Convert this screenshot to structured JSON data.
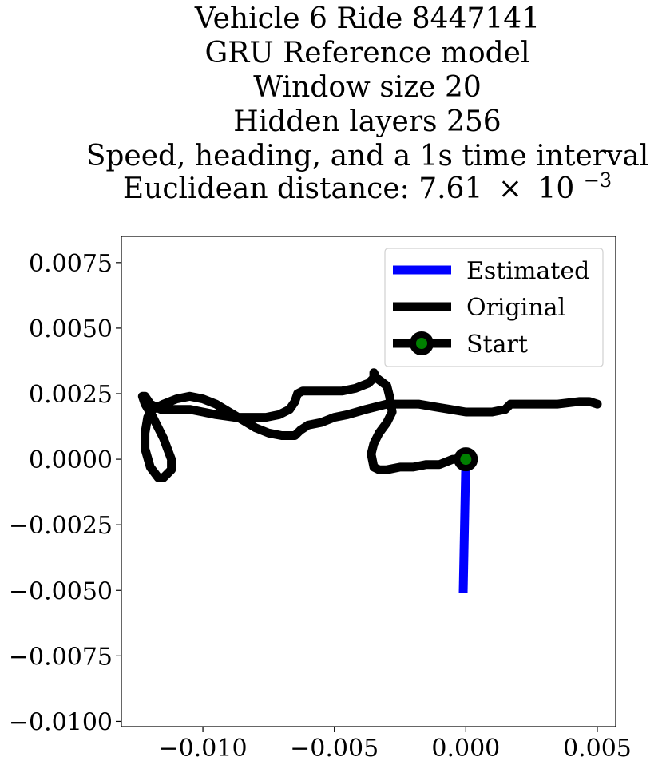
{
  "chart_data": {
    "type": "line",
    "title_lines": [
      "Vehicle 6 Ride 8447141",
      "GRU Reference model",
      "Window size 20",
      "Hidden layers 256",
      "Speed, heading, and a 1s time interval"
    ],
    "title_metric_prefix": "Euclidean distance: 7.61",
    "title_metric_times": "×",
    "title_metric_base": "10",
    "title_metric_exp": "−3",
    "xlim": [
      -0.0131,
      0.0057
    ],
    "ylim": [
      -0.0102,
      0.0085
    ],
    "xticks": [
      -0.01,
      -0.005,
      0.0,
      0.005
    ],
    "xtick_labels": [
      "−0.010",
      "−0.005",
      "0.000",
      "0.005"
    ],
    "yticks": [
      0.0075,
      0.005,
      0.0025,
      0.0,
      -0.0025,
      -0.005,
      -0.0075,
      -0.01
    ],
    "ytick_labels": [
      "0.0075",
      "0.0050",
      "0.0025",
      "0.0000",
      "−0.0025",
      "−0.0050",
      "−0.0075",
      "−0.0100"
    ],
    "grid": false,
    "legend_position": "upper right",
    "series": [
      {
        "name": "Estimated",
        "color": "#0000ff",
        "points": [
          [
            0.0,
            0.0
          ],
          [
            -0.0001,
            -0.0051
          ]
        ]
      },
      {
        "name": "Original",
        "color": "#000000",
        "points": [
          [
            0.005,
            0.0021
          ],
          [
            0.0047,
            0.0022
          ],
          [
            0.0043,
            0.0022
          ],
          [
            0.0035,
            0.0021
          ],
          [
            0.0025,
            0.0021
          ],
          [
            0.0017,
            0.0021
          ],
          [
            0.0015,
            0.0019
          ],
          [
            0.001,
            0.0018
          ],
          [
            0.0005,
            0.0018
          ],
          [
            0.0,
            0.0018
          ],
          [
            -0.0006,
            0.0019
          ],
          [
            -0.0012,
            0.002
          ],
          [
            -0.0018,
            0.0021
          ],
          [
            -0.0025,
            0.0021
          ],
          [
            -0.003,
            0.0021
          ],
          [
            -0.0038,
            0.0019
          ],
          [
            -0.0045,
            0.0017
          ],
          [
            -0.005,
            0.0016
          ],
          [
            -0.0055,
            0.0014
          ],
          [
            -0.006,
            0.0013
          ],
          [
            -0.0063,
            0.0011
          ],
          [
            -0.0065,
            0.0009
          ],
          [
            -0.007,
            0.0009
          ],
          [
            -0.0075,
            0.001
          ],
          [
            -0.008,
            0.0012
          ],
          [
            -0.0085,
            0.0015
          ],
          [
            -0.009,
            0.0018
          ],
          [
            -0.0095,
            0.0021
          ],
          [
            -0.01,
            0.0023
          ],
          [
            -0.0105,
            0.0024
          ],
          [
            -0.011,
            0.0023
          ],
          [
            -0.0115,
            0.0021
          ],
          [
            -0.0119,
            0.0019
          ],
          [
            -0.0121,
            0.0016
          ],
          [
            -0.0122,
            0.001
          ],
          [
            -0.0122,
            0.0004
          ],
          [
            -0.012,
            -0.0003
          ],
          [
            -0.0117,
            -0.0007
          ],
          [
            -0.0115,
            -0.0007
          ],
          [
            -0.0112,
            -0.0004
          ],
          [
            -0.0112,
            0.0
          ],
          [
            -0.0115,
            0.0008
          ],
          [
            -0.0119,
            0.0016
          ],
          [
            -0.0122,
            0.0021
          ],
          [
            -0.0123,
            0.0024
          ],
          [
            -0.0122,
            0.0024
          ],
          [
            -0.012,
            0.0021
          ],
          [
            -0.0116,
            0.0019
          ],
          [
            -0.011,
            0.0019
          ],
          [
            -0.0105,
            0.0019
          ],
          [
            -0.01,
            0.0018
          ],
          [
            -0.0095,
            0.0017
          ],
          [
            -0.0088,
            0.0016
          ],
          [
            -0.0082,
            0.0016
          ],
          [
            -0.0076,
            0.0016
          ],
          [
            -0.0071,
            0.0017
          ],
          [
            -0.0067,
            0.0019
          ],
          [
            -0.0065,
            0.0022
          ],
          [
            -0.0064,
            0.0025
          ],
          [
            -0.0062,
            0.0026
          ],
          [
            -0.0057,
            0.0026
          ],
          [
            -0.0052,
            0.0026
          ],
          [
            -0.0047,
            0.0026
          ],
          [
            -0.0042,
            0.0027
          ],
          [
            -0.0037,
            0.0029
          ],
          [
            -0.0035,
            0.0031
          ],
          [
            -0.0035,
            0.0033
          ],
          [
            -0.0034,
            0.0031
          ],
          [
            -0.003,
            0.0028
          ],
          [
            -0.0029,
            0.0024
          ],
          [
            -0.0028,
            0.0018
          ],
          [
            -0.003,
            0.0014
          ],
          [
            -0.0033,
            0.001
          ],
          [
            -0.0035,
            0.0006
          ],
          [
            -0.0036,
            0.0002
          ],
          [
            -0.0035,
            -0.0003
          ],
          [
            -0.0033,
            -0.0004
          ],
          [
            -0.003,
            -0.0004
          ],
          [
            -0.0025,
            -0.0003
          ],
          [
            -0.002,
            -0.0003
          ],
          [
            -0.0015,
            -0.0002
          ],
          [
            -0.001,
            -0.0002
          ],
          [
            -0.0005,
            0.0
          ],
          [
            0.0,
            0.0
          ]
        ]
      },
      {
        "name": "Start",
        "color": "#000000",
        "marker_face": "#008000",
        "points": [
          [
            0.0,
            0.0
          ]
        ]
      }
    ]
  }
}
